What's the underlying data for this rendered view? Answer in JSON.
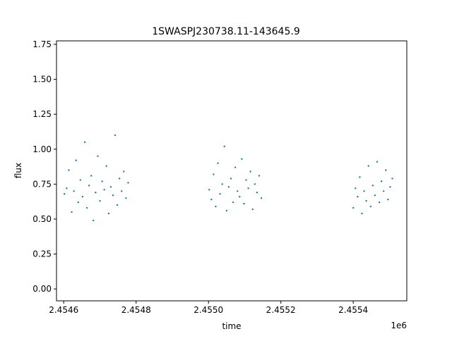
{
  "chart_data": {
    "type": "scatter",
    "title": "1SWASPJ230738.11-143645.9",
    "xlabel": "time",
    "ylabel": "flux",
    "x_offset_label": "1e6",
    "xlim": [
      2.45458,
      2.455548
    ],
    "ylim": [
      -0.085,
      1.775
    ],
    "x_ticks": [
      {
        "value": 2.4546,
        "label": "2.4546"
      },
      {
        "value": 2.4548,
        "label": "2.4548"
      },
      {
        "value": 2.455,
        "label": "2.4550"
      },
      {
        "value": 2.4552,
        "label": "2.4552"
      },
      {
        "value": 2.4554,
        "label": "2.4554"
      }
    ],
    "y_ticks": [
      {
        "value": 0.0,
        "label": "0.00"
      },
      {
        "value": 0.25,
        "label": "0.25"
      },
      {
        "value": 0.5,
        "label": "0.50"
      },
      {
        "value": 0.75,
        "label": "0.75"
      },
      {
        "value": 1.0,
        "label": "1.00"
      },
      {
        "value": 1.25,
        "label": "1.25"
      },
      {
        "value": 1.5,
        "label": "1.50"
      },
      {
        "value": 1.75,
        "label": "1.75"
      }
    ],
    "grid": false,
    "legend": "none",
    "point_color": "#1f77b4",
    "series": [
      {
        "x": [
          2.454602,
          2.454608,
          2.454614,
          2.454622,
          2.454628,
          2.454634,
          2.45464,
          2.454646,
          2.454652,
          2.454658,
          2.454664,
          2.45467,
          2.454676,
          2.454682,
          2.454688,
          2.454694,
          2.4547,
          2.454706,
          2.454712,
          2.454718,
          2.454724,
          2.45473,
          2.454736,
          2.454742,
          2.454748,
          2.454754,
          2.45476,
          2.454766,
          2.454772,
          2.454778,
          2.455002,
          2.455008,
          2.455014,
          2.45502,
          2.455026,
          2.455032,
          2.455038,
          2.455044,
          2.45505,
          2.455056,
          2.455062,
          2.455068,
          2.455074,
          2.45508,
          2.455086,
          2.455092,
          2.455098,
          2.455104,
          2.45511,
          2.455116,
          2.455122,
          2.455128,
          2.455134,
          2.45514,
          2.455146,
          2.4554,
          2.455406,
          2.455412,
          2.455418,
          2.455424,
          2.45543,
          2.455436,
          2.455442,
          2.455448,
          2.455454,
          2.45546,
          2.455466,
          2.455472,
          2.455478,
          2.455484,
          2.45549,
          2.455496,
          2.455502,
          2.455508
        ],
        "y": [
          0.68,
          0.72,
          0.85,
          0.55,
          0.7,
          0.92,
          0.62,
          0.78,
          0.66,
          1.05,
          0.58,
          0.74,
          0.81,
          0.49,
          0.69,
          0.95,
          0.63,
          0.77,
          0.71,
          0.88,
          0.54,
          0.73,
          0.67,
          1.1,
          0.6,
          0.79,
          0.7,
          0.84,
          0.65,
          0.76,
          0.71,
          0.64,
          0.82,
          0.59,
          0.9,
          0.68,
          0.75,
          1.02,
          0.56,
          0.73,
          0.79,
          0.62,
          0.87,
          0.7,
          0.66,
          0.93,
          0.61,
          0.78,
          0.72,
          0.84,
          0.57,
          0.75,
          0.69,
          0.81,
          0.65,
          0.58,
          0.72,
          0.66,
          0.8,
          0.54,
          0.7,
          0.63,
          0.88,
          0.59,
          0.74,
          0.67,
          0.91,
          0.62,
          0.77,
          0.7,
          0.85,
          0.64,
          0.73,
          0.79
        ]
      }
    ]
  }
}
